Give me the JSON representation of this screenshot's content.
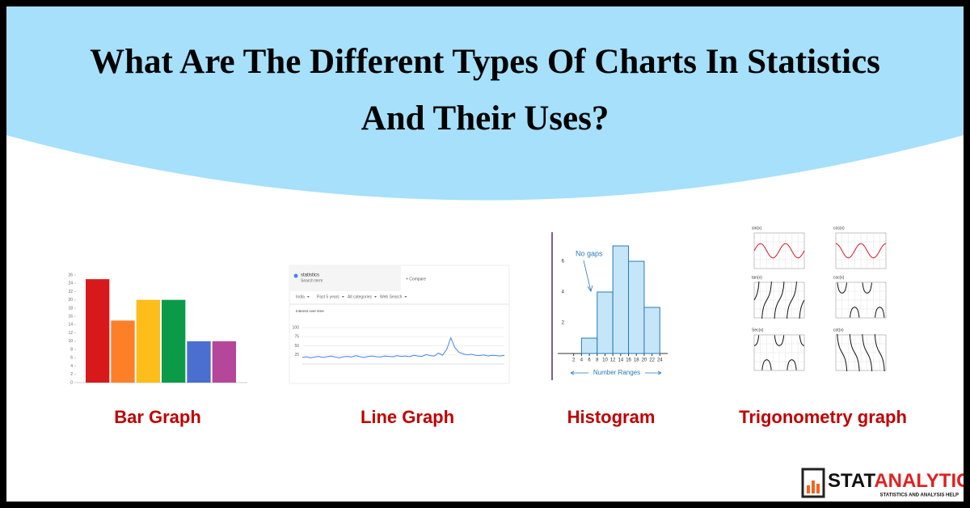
{
  "header": {
    "title_lines": [
      "What Are The Different Types Of Charts In Statistics",
      "And Their Uses?"
    ]
  },
  "panels": [
    {
      "label": "Bar Graph",
      "chart_data": {
        "type": "bar",
        "categories": [
          null,
          null,
          null,
          null,
          null,
          null
        ],
        "values": [
          25,
          15,
          20,
          20,
          10,
          10
        ],
        "colors": [
          "#d7191c",
          "#fd7f28",
          "#fdbd1a",
          "#0b9b48",
          "#4a6fd1",
          "#b5479b"
        ],
        "ylim": [
          0,
          26
        ],
        "yticks": [
          0,
          2,
          4,
          6,
          8,
          10,
          12,
          14,
          16,
          18,
          20,
          22,
          24,
          26
        ]
      }
    },
    {
      "label": "Line Graph",
      "chart_data": {
        "type": "line",
        "search_term": "statistics",
        "search_sub": "Search term",
        "compare": "+ Compare",
        "filters": [
          "India",
          "Past 5 years",
          "All categories",
          "Web Search"
        ],
        "title": "Interest over time",
        "color": "#4285f4",
        "values": [
          18,
          20,
          17,
          19,
          21,
          18,
          20,
          22,
          19,
          17,
          20,
          21,
          19,
          23,
          20,
          18,
          21,
          22,
          20,
          19,
          22,
          21,
          20,
          23,
          21,
          22,
          20,
          24,
          22,
          21,
          26,
          23,
          22,
          30,
          24,
          40,
          72,
          45,
          32,
          28,
          25,
          27,
          24,
          23,
          25,
          22,
          24,
          23,
          22,
          24
        ],
        "ylim": [
          0,
          100
        ],
        "yticks": [
          25,
          50,
          75,
          100
        ]
      }
    },
    {
      "label": "Histogram",
      "chart_data": {
        "type": "histogram",
        "bins": [
          4,
          8,
          12,
          16,
          20,
          24
        ],
        "counts": [
          1,
          4,
          7,
          6,
          3
        ],
        "xlim": [
          0,
          26
        ],
        "ylim": [
          0,
          8
        ],
        "xticks": [
          2,
          4,
          6,
          8,
          10,
          12,
          14,
          16,
          18,
          20,
          22,
          24
        ],
        "yticks": [
          2,
          4,
          6
        ],
        "annotation": "No gaps",
        "xlabel": "Number Ranges"
      }
    },
    {
      "label": "Trigonometry graph",
      "graphs": [
        "sin(x)",
        "cos(x)",
        "tan(x)",
        "csc(x)",
        "Sec(x)",
        "cot(x)"
      ]
    }
  ],
  "logo": {
    "brand_1": "STAT",
    "brand_2": "ANALYTICA",
    "tagline": "STATISTICS AND ANALYSIS HELP"
  }
}
